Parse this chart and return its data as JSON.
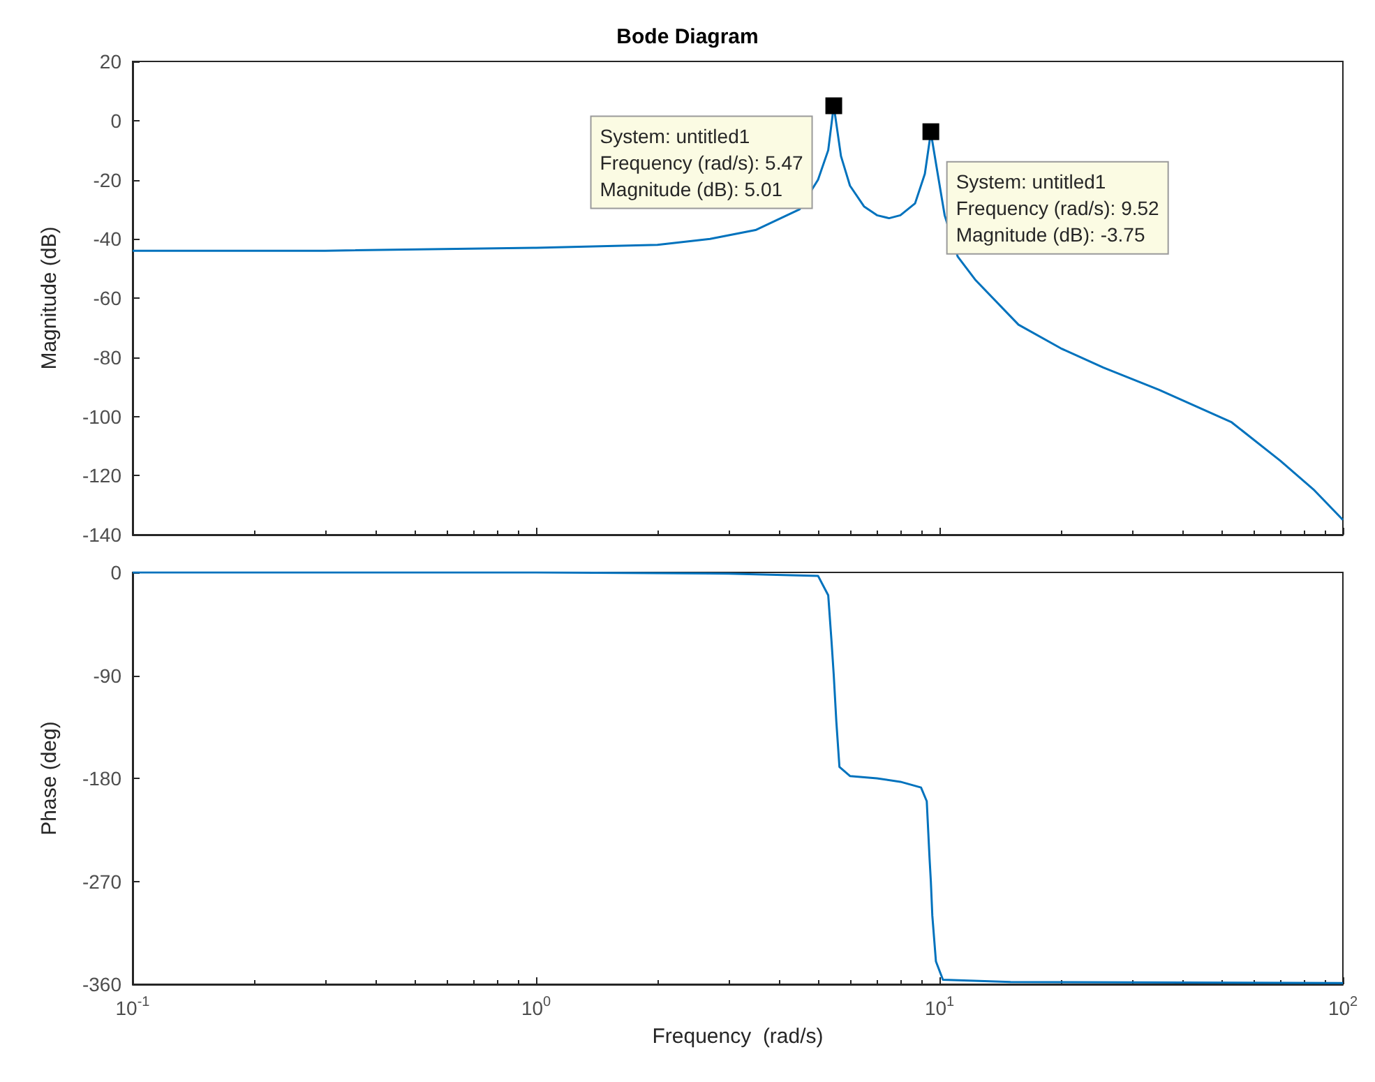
{
  "chart_data": [
    {
      "type": "line",
      "title": "Bode Diagram",
      "ylabel": "Magnitude (dB)",
      "log": "x",
      "grid": false,
      "tick_labels": "y",
      "marker": "none",
      "line_style": "solid",
      "xlim": [
        0.1,
        100
      ],
      "xticks": [
        {
          "value": 0.1,
          "label": null
        },
        {
          "value": 1,
          "label": null
        },
        {
          "value": 10,
          "label": null
        },
        {
          "value": 100,
          "label": null
        }
      ],
      "ylim": [
        -140,
        20
      ],
      "yticks": [
        -140,
        -120,
        -100,
        -80,
        -60,
        -40,
        -20,
        0,
        20
      ],
      "x": [
        0.1,
        0.3,
        1,
        2,
        2.7,
        3.5,
        4.5,
        5,
        5.3,
        5.47,
        5.7,
        6,
        6.5,
        7,
        7.5,
        8,
        8.7,
        9.2,
        9.52,
        9.9,
        10.3,
        11.1,
        12.3,
        15.7,
        20,
        25.5,
        35,
        53,
        70,
        85,
        100
      ],
      "series": [
        {
          "color": "#0072bd",
          "values": [
            -44,
            -44,
            -43,
            -42,
            -40,
            -37,
            -30,
            -20,
            -10,
            5,
            -12,
            -22,
            -29,
            -32,
            -33,
            -32,
            -28,
            -18,
            -4,
            -18,
            -32,
            -46,
            -54,
            -69,
            -77,
            -83.5,
            -91,
            -102,
            -115,
            -125,
            -135
          ]
        }
      ],
      "annotations": [
        {
          "text": "System: untitled1\nFrequency (rad/s): 5.47\nMagnitude (dB): 5.01",
          "x": 5.47,
          "y": 5.01
        },
        {
          "text": "System: untitled1\nFrequency (rad/s): 9.52\nMagnitude (dB): -3.75",
          "x": 9.52,
          "y": -3.75
        }
      ]
    },
    {
      "type": "line",
      "xlabel": "Frequency  (rad/s)",
      "ylabel": "Phase (deg)",
      "log": "x",
      "grid": false,
      "marker": "none",
      "line_style": "solid",
      "xlim": [
        0.1,
        100
      ],
      "xticks": [
        {
          "value": 0.1,
          "label": "10$^{-1}$"
        },
        {
          "value": 1,
          "label": "10$^{0}$"
        },
        {
          "value": 10,
          "label": "10$^{1}$"
        },
        {
          "value": 100,
          "label": "10$^{2}$"
        }
      ],
      "ylim": [
        -360,
        0
      ],
      "yticks": [
        -360,
        -270,
        -180,
        -90,
        0
      ],
      "x": [
        0.1,
        1,
        3,
        5,
        5.3,
        5.4,
        5.47,
        5.55,
        5.65,
        6,
        7,
        8,
        9,
        9.3,
        9.45,
        9.52,
        9.6,
        9.8,
        10.2,
        15,
        100
      ],
      "series": [
        {
          "color": "#0072bd",
          "values": [
            0,
            0,
            -1,
            -3,
            -20,
            -60,
            -90,
            -130,
            -170,
            -178,
            -180,
            -183,
            -188,
            -200,
            -250,
            -270,
            -300,
            -340,
            -356,
            -358,
            -359
          ]
        }
      ]
    }
  ]
}
